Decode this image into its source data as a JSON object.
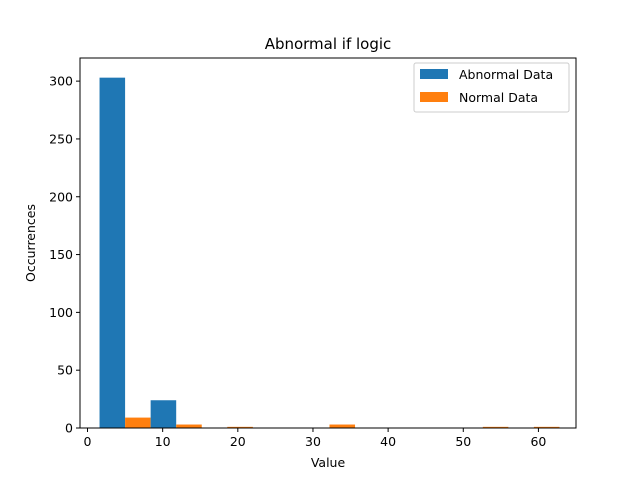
{
  "chart_data": {
    "type": "bar",
    "title": "Abnormal if logic",
    "xlabel": "Value",
    "ylabel": "Occurrences",
    "xlim": [
      -1,
      65
    ],
    "ylim": [
      0,
      320
    ],
    "xticks": [
      0,
      10,
      20,
      30,
      40,
      50,
      60
    ],
    "yticks": [
      0,
      50,
      100,
      150,
      200,
      250,
      300
    ],
    "bin_edges": [
      1.6,
      8.4,
      15.2,
      22.0,
      28.8,
      35.6,
      42.4,
      49.2,
      56.0,
      62.8
    ],
    "grid": false,
    "legend_position": "top-right",
    "series": [
      {
        "name": "Abnormal Data",
        "color": "#1f77b4",
        "values": [
          303,
          24,
          0,
          0,
          0,
          0,
          0,
          0,
          0
        ]
      },
      {
        "name": "Normal Data",
        "color": "#ff7f0e",
        "values": [
          9,
          3,
          1,
          0,
          3,
          0,
          0,
          1,
          1
        ]
      }
    ]
  }
}
